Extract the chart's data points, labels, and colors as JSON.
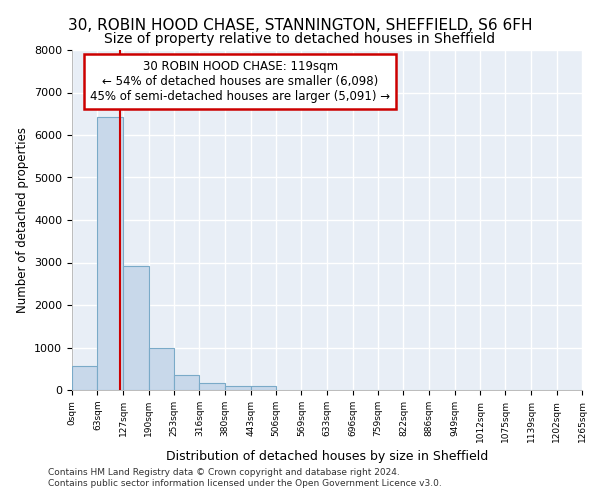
{
  "title1": "30, ROBIN HOOD CHASE, STANNINGTON, SHEFFIELD, S6 6FH",
  "title2": "Size of property relative to detached houses in Sheffield",
  "xlabel": "Distribution of detached houses by size in Sheffield",
  "ylabel": "Number of detached properties",
  "bin_edges": [
    0,
    63,
    127,
    190,
    253,
    316,
    380,
    443,
    506,
    569,
    633,
    696,
    759,
    822,
    886,
    949,
    1012,
    1075,
    1139,
    1202,
    1265
  ],
  "bar_heights": [
    570,
    6430,
    2920,
    980,
    360,
    170,
    100,
    90,
    0,
    0,
    0,
    0,
    0,
    0,
    0,
    0,
    0,
    0,
    0,
    0
  ],
  "bar_color": "#c8d8ea",
  "bar_edge_color": "#7aaac8",
  "vline_color": "#cc0000",
  "vline_x": 119,
  "annotation_line1": "30 ROBIN HOOD CHASE: 119sqm",
  "annotation_line2": "← 54% of detached houses are smaller (6,098)",
  "annotation_line3": "45% of semi-detached houses are larger (5,091) →",
  "annotation_box_color": "#cc0000",
  "footer_text": "Contains HM Land Registry data © Crown copyright and database right 2024.\nContains public sector information licensed under the Open Government Licence v3.0.",
  "ylim": [
    0,
    8000
  ],
  "background_color": "#e8eef6",
  "grid_color": "#ffffff",
  "title1_fontsize": 11,
  "title2_fontsize": 10,
  "tick_labels": [
    "0sqm",
    "63sqm",
    "127sqm",
    "190sqm",
    "253sqm",
    "316sqm",
    "380sqm",
    "443sqm",
    "506sqm",
    "569sqm",
    "633sqm",
    "696sqm",
    "759sqm",
    "822sqm",
    "886sqm",
    "949sqm",
    "1012sqm",
    "1075sqm",
    "1139sqm",
    "1202sqm",
    "1265sqm"
  ],
  "yticks": [
    0,
    1000,
    2000,
    3000,
    4000,
    5000,
    6000,
    7000,
    8000
  ]
}
